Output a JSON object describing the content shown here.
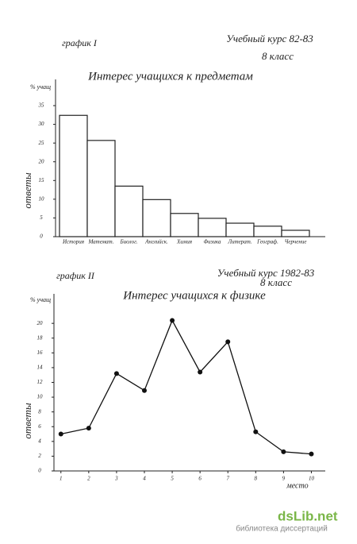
{
  "chart_data": [
    {
      "type": "bar",
      "headers": [
        "график I",
        "Учебный курс 82-83",
        "8 класс"
      ],
      "title": "Интерес учащихся к предметам",
      "y_label": "% учащ",
      "y_axis_title": "ответы",
      "categories": [
        "История",
        "Математ.",
        "Биолог.",
        "Английск.",
        "Химия",
        "Физика",
        "Литерат.",
        "Географ.",
        "Черчение"
      ],
      "values": [
        32.4,
        25.7,
        13.5,
        9.9,
        6.2,
        4.9,
        3.6,
        2.8,
        1.7
      ],
      "color": "#ffffff",
      "ylim": [
        0,
        42
      ],
      "yticks": [
        0,
        5,
        10,
        15,
        20,
        25,
        30,
        35
      ]
    },
    {
      "type": "line",
      "headers": [
        "график II",
        "Учебный курс 1982-83",
        "8 класс"
      ],
      "title": "Интерес учащихся к физике",
      "y_label": "% учащ",
      "y_axis_title": "ответы",
      "x_label": "место",
      "x": [
        1,
        2,
        3,
        4,
        5,
        6,
        7,
        8,
        9,
        10
      ],
      "values": [
        5.0,
        5.8,
        13.2,
        10.9,
        20.4,
        13.4,
        17.5,
        5.3,
        2.6,
        2.3
      ],
      "color": "#111111",
      "xlim": [
        0.75,
        10.5
      ],
      "xticks": [
        1,
        2,
        3,
        4,
        5,
        6,
        7,
        8,
        9,
        10
      ],
      "ylim": [
        0,
        24
      ],
      "yticks": [
        0,
        2,
        4,
        6,
        8,
        10,
        12,
        14,
        16,
        18,
        20
      ]
    }
  ],
  "watermark": {
    "site": "dsLib.net",
    "caption": "библиотека диссертаций"
  }
}
